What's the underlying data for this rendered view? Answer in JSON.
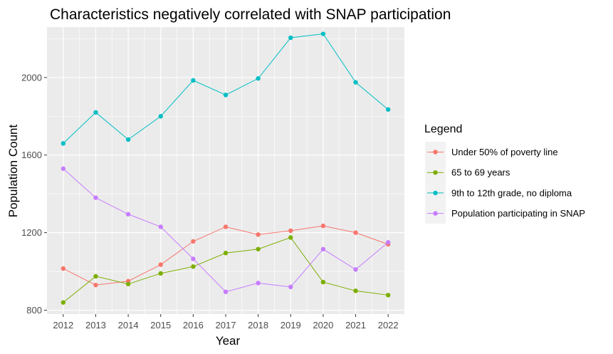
{
  "chart_data": {
    "type": "line",
    "title": "Characteristics negatively correlated with SNAP participation",
    "xlabel": "Year",
    "ylabel": "Population Count",
    "x": [
      2012,
      2013,
      2014,
      2015,
      2016,
      2017,
      2018,
      2019,
      2020,
      2021,
      2022
    ],
    "x_tick_labels": [
      "2012",
      "2013",
      "2014",
      "2015",
      "2016",
      "2017",
      "2018",
      "2019",
      "2020",
      "2021",
      "2022"
    ],
    "ylim": [
      780,
      2260
    ],
    "y_ticks": [
      800,
      1200,
      1600,
      2000
    ],
    "y_tick_labels": [
      "800",
      "1200",
      "1600",
      "2000"
    ],
    "grid": true,
    "legend": {
      "title": "Legend",
      "placement": "right"
    },
    "series": [
      {
        "name": "Under 50% of poverty line",
        "color": "#F8766D",
        "values": [
          1015,
          930,
          950,
          1035,
          1155,
          1230,
          1190,
          1210,
          1235,
          1200,
          1140
        ]
      },
      {
        "name": "65 to 69 years",
        "color": "#7CAE00",
        "values": [
          840,
          975,
          935,
          990,
          1025,
          1095,
          1115,
          1175,
          945,
          900,
          878
        ]
      },
      {
        "name": "9th to 12th grade, no diploma",
        "color": "#00BFC4",
        "values": [
          1660,
          1820,
          1680,
          1800,
          1985,
          1910,
          1995,
          2205,
          2225,
          1975,
          1835
        ]
      },
      {
        "name": "Population participating in SNAP",
        "color": "#C77CFF",
        "values": [
          1530,
          1380,
          1295,
          1230,
          1065,
          895,
          940,
          920,
          1115,
          1010,
          1150
        ]
      }
    ]
  }
}
